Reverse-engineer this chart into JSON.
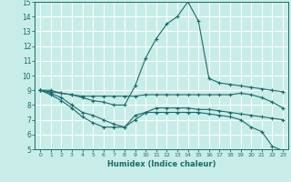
{
  "xlabel": "Humidex (Indice chaleur)",
  "bg_color": "#c8ede8",
  "grid_color": "#b0d8d2",
  "line_color": "#1a6b6b",
  "xlim": [
    -0.5,
    23.5
  ],
  "ylim": [
    5,
    15
  ],
  "xticks": [
    0,
    1,
    2,
    3,
    4,
    5,
    6,
    7,
    8,
    9,
    10,
    11,
    12,
    13,
    14,
    15,
    16,
    17,
    18,
    19,
    20,
    21,
    22,
    23
  ],
  "yticks": [
    5,
    6,
    7,
    8,
    9,
    10,
    11,
    12,
    13,
    14,
    15
  ],
  "lines": [
    {
      "x": [
        0,
        1,
        2,
        3,
        4,
        5,
        6,
        7,
        8,
        9,
        10,
        11,
        12,
        13,
        14,
        15,
        16,
        17,
        18,
        19,
        20,
        21,
        22,
        23
      ],
      "y": [
        9.0,
        9.0,
        8.8,
        8.7,
        8.5,
        8.3,
        8.2,
        8.0,
        8.0,
        9.3,
        11.2,
        12.5,
        13.5,
        14.0,
        15.0,
        13.7,
        9.8,
        9.5,
        9.4,
        9.3,
        9.2,
        9.1,
        9.0,
        8.9
      ]
    },
    {
      "x": [
        0,
        1,
        2,
        3,
        4,
        5,
        6,
        7,
        8,
        9,
        10,
        11,
        12,
        13,
        14,
        15,
        16,
        17,
        18,
        19,
        20,
        21,
        22,
        23
      ],
      "y": [
        9.0,
        8.9,
        8.8,
        8.7,
        8.6,
        8.6,
        8.6,
        8.6,
        8.6,
        8.6,
        8.7,
        8.7,
        8.7,
        8.7,
        8.7,
        8.7,
        8.7,
        8.7,
        8.7,
        8.8,
        8.7,
        8.5,
        8.2,
        7.8
      ]
    },
    {
      "x": [
        0,
        1,
        2,
        3,
        4,
        5,
        6,
        7,
        8,
        9,
        10,
        11,
        12,
        13,
        14,
        15,
        16,
        17,
        18,
        19,
        20,
        21,
        22,
        23
      ],
      "y": [
        9.0,
        8.8,
        8.5,
        8.0,
        7.5,
        7.3,
        7.0,
        6.7,
        6.5,
        7.0,
        7.5,
        7.8,
        7.8,
        7.8,
        7.8,
        7.7,
        7.7,
        7.6,
        7.5,
        7.4,
        7.3,
        7.2,
        7.1,
        7.0
      ]
    },
    {
      "x": [
        0,
        1,
        2,
        3,
        4,
        5,
        6,
        7,
        8,
        9,
        10,
        11,
        12,
        13,
        14,
        15,
        16,
        17,
        18,
        19,
        20,
        21,
        22,
        23
      ],
      "y": [
        9.0,
        8.7,
        8.3,
        7.8,
        7.2,
        6.8,
        6.5,
        6.5,
        6.5,
        7.3,
        7.5,
        7.5,
        7.5,
        7.5,
        7.5,
        7.5,
        7.4,
        7.3,
        7.2,
        7.0,
        6.5,
        6.2,
        5.2,
        4.9
      ]
    }
  ]
}
